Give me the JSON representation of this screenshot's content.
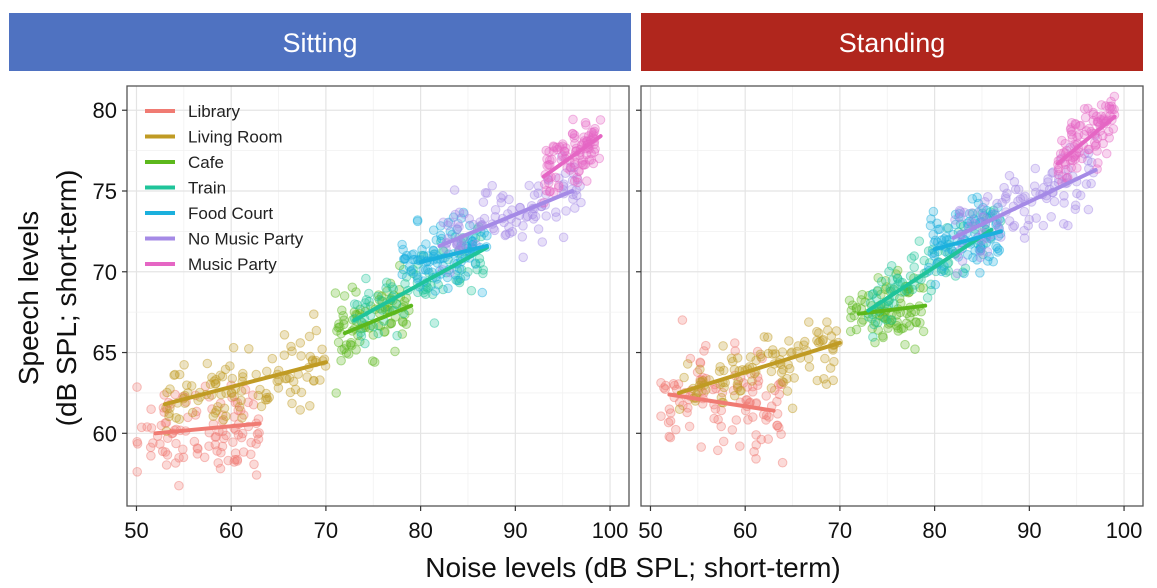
{
  "xlabel": "Noise levels (dB SPL; short-term)",
  "ylabel_line1": "Speech levels",
  "ylabel_line2": "(dB SPL; short-term)",
  "colors": {
    "sitting_header": "#4f72c1",
    "standing_header": "#b0261d",
    "Library": "#f07b73",
    "Living Room": "#c09b24",
    "Cafe": "#5cb81c",
    "Train": "#1fc49a",
    "Food Court": "#1bb0dd",
    "No Music Party": "#a58ae6",
    "Music Party": "#e566c4"
  },
  "chart_data": [
    {
      "type": "scatter",
      "title": "Sitting",
      "xlabel": "Noise levels (dB SPL; short-term)",
      "ylabel": "Speech levels (dB SPL; short-term)",
      "xlim": [
        49,
        102
      ],
      "ylim": [
        55.5,
        81.5
      ],
      "xticks": [
        50,
        60,
        70,
        80,
        90,
        100
      ],
      "yticks": [
        60,
        65,
        70,
        75,
        80
      ],
      "grid": true,
      "legend_position": "top-left",
      "series": [
        {
          "name": "Library",
          "x_range": [
            50,
            63
          ],
          "y_center": 60.3,
          "y_spread": 1.4,
          "n": 110,
          "fit": [
            [
              52,
              60.0
            ],
            [
              63,
              60.6
            ]
          ]
        },
        {
          "name": "Living Room",
          "x_range": [
            53,
            70
          ],
          "y_center": 63.2,
          "y_spread": 1.1,
          "n": 110,
          "fit": [
            [
              53,
              61.8
            ],
            [
              70,
              64.4
            ]
          ]
        },
        {
          "name": "Cafe",
          "x_range": [
            71,
            79
          ],
          "y_center": 66.8,
          "y_spread": 1.0,
          "n": 90,
          "fit": [
            [
              72,
              66.2
            ],
            [
              79,
              67.9
            ]
          ]
        },
        {
          "name": "Train",
          "x_range": [
            73,
            87
          ],
          "y_center": 68.4,
          "y_spread": 1.0,
          "n": 90,
          "fit": [
            [
              73,
              67.0
            ],
            [
              87,
              71.5
            ]
          ]
        },
        {
          "name": "Food Court",
          "x_range": [
            78,
            87
          ],
          "y_center": 70.9,
          "y_spread": 1.1,
          "n": 100,
          "fit": [
            [
              80,
              70.6
            ],
            [
              87,
              71.6
            ]
          ]
        },
        {
          "name": "No Music Party",
          "x_range": [
            82,
            97
          ],
          "y_center": 73.0,
          "y_spread": 1.0,
          "n": 110,
          "fit": [
            [
              82,
              71.6
            ],
            [
              96,
              75.0
            ]
          ]
        },
        {
          "name": "Music Party",
          "x_range": [
            93,
            99
          ],
          "y_center": 77.0,
          "y_spread": 0.9,
          "n": 100,
          "fit": [
            [
              93,
              75.9
            ],
            [
              99,
              78.4
            ]
          ]
        }
      ]
    },
    {
      "type": "scatter",
      "title": "Standing",
      "xlabel": "Noise levels (dB SPL; short-term)",
      "ylabel": "Speech levels (dB SPL; short-term)",
      "xlim": [
        49,
        102
      ],
      "ylim": [
        55.5,
        81.5
      ],
      "xticks": [
        50,
        60,
        70,
        80,
        90,
        100
      ],
      "yticks": [
        60,
        65,
        70,
        75,
        80
      ],
      "grid": true,
      "series": [
        {
          "name": "Library",
          "x_range": [
            51,
            64
          ],
          "y_center": 61.8,
          "y_spread": 1.5,
          "n": 110,
          "fit": [
            [
              52,
              62.4
            ],
            [
              63,
              61.4
            ]
          ]
        },
        {
          "name": "Living Room",
          "x_range": [
            53,
            70
          ],
          "y_center": 64.0,
          "y_spread": 1.1,
          "n": 110,
          "fit": [
            [
              53,
              62.5
            ],
            [
              70,
              65.6
            ]
          ]
        },
        {
          "name": "Cafe",
          "x_range": [
            71,
            79
          ],
          "y_center": 67.4,
          "y_spread": 1.0,
          "n": 90,
          "fit": [
            [
              72,
              67.4
            ],
            [
              79,
              67.9
            ]
          ]
        },
        {
          "name": "Train",
          "x_range": [
            73,
            87
          ],
          "y_center": 69.3,
          "y_spread": 1.0,
          "n": 90,
          "fit": [
            [
              73,
              67.6
            ],
            [
              86,
              72.6
            ]
          ]
        },
        {
          "name": "Food Court",
          "x_range": [
            79,
            87
          ],
          "y_center": 71.8,
          "y_spread": 1.1,
          "n": 100,
          "fit": [
            [
              80,
              71.4
            ],
            [
              87,
              72.5
            ]
          ]
        },
        {
          "name": "No Music Party",
          "x_range": [
            82,
            97
          ],
          "y_center": 74.0,
          "y_spread": 1.0,
          "n": 110,
          "fit": [
            [
              82,
              72.1
            ],
            [
              97,
              76.3
            ]
          ]
        },
        {
          "name": "Music Party",
          "x_range": [
            93,
            99
          ],
          "y_center": 77.8,
          "y_spread": 0.9,
          "n": 100,
          "fit": [
            [
              93,
              76.7
            ],
            [
              99,
              79.6
            ]
          ]
        }
      ]
    }
  ]
}
